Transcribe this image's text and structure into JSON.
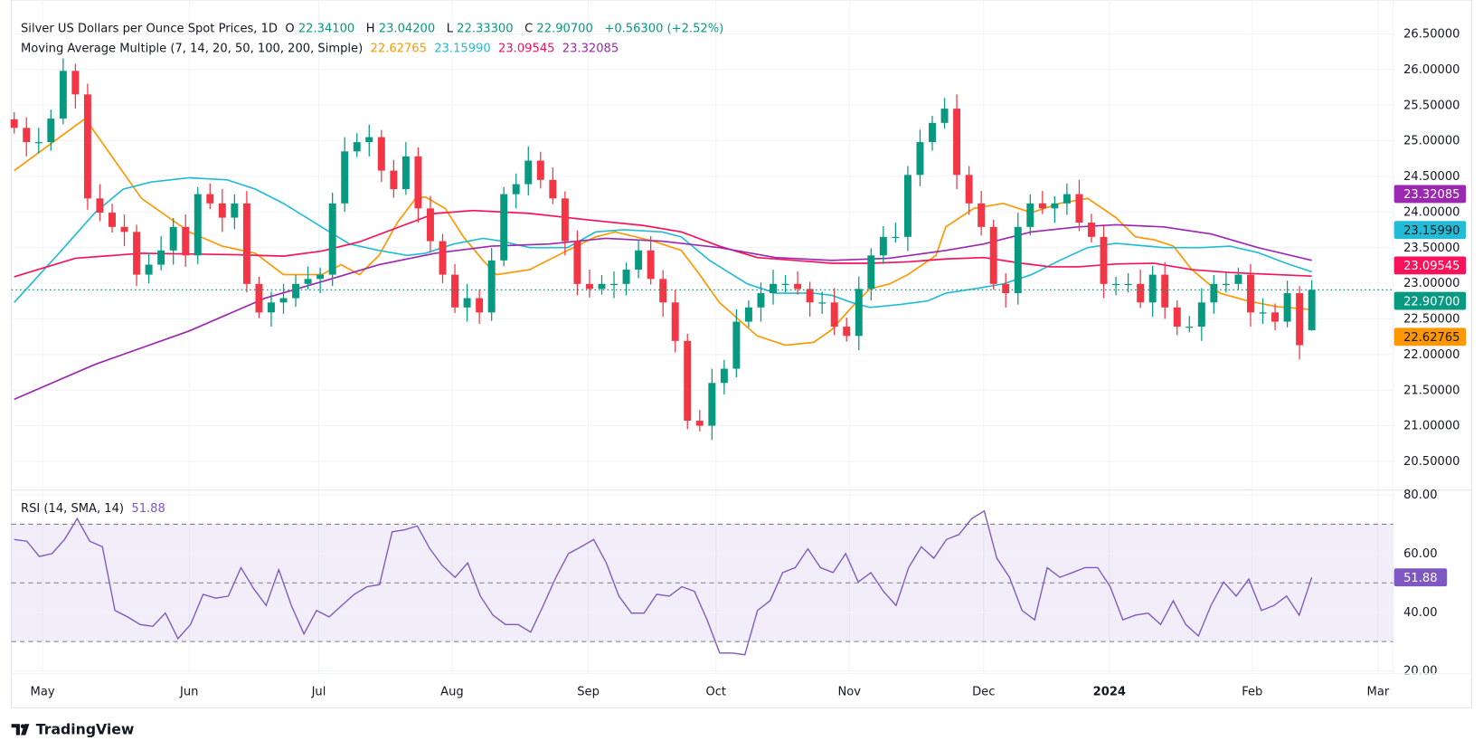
{
  "header": {
    "title": "Silver US Dollars per Ounce Spot Prices, 1D",
    "open_label": "O",
    "open": "22.34100",
    "high_label": "H",
    "high": "23.04200",
    "low_label": "L",
    "low": "22.33300",
    "close_label": "C",
    "close": "22.90700",
    "change": "+0.56300 (+2.52%)"
  },
  "ma_legend": {
    "title": "Moving Average Multiple (7, 14, 20, 50, 100, 200, Simple)",
    "values": [
      "22.62765",
      "23.15990",
      "23.09545",
      "23.32085"
    ]
  },
  "rsi_legend": {
    "title": "RSI (14, SMA, 14)",
    "value": "51.88"
  },
  "branding": {
    "name": "TradingView"
  },
  "colors": {
    "up": "#089981",
    "down": "#F23645",
    "ma20": "#FF9800",
    "ma50": "#22BCD6",
    "ma100": "#F7125A",
    "ma200": "#9C27B0",
    "rsi": "#7E57C2"
  },
  "chart_data": {
    "type": "candlestick",
    "title": "Silver US Dollars per Ounce Spot Prices, 1D",
    "price_axis": {
      "ticks": [
        "26.50000",
        "26.00000",
        "25.50000",
        "25.00000",
        "24.50000",
        "24.00000",
        "23.50000",
        "23.00000",
        "22.50000",
        "22.00000",
        "21.50000",
        "21.00000",
        "20.50000"
      ],
      "ylim": [
        20.3,
        26.7
      ]
    },
    "time_axis": {
      "ticks": [
        "May",
        "Jun",
        "Jul",
        "Aug",
        "Sep",
        "Oct",
        "Nov",
        "Dec",
        "2024",
        "Feb",
        "Mar"
      ]
    },
    "first_open": 25.3,
    "last_candle": {
      "open": 22.341,
      "high": 23.042,
      "low": 22.333,
      "close": 22.907
    },
    "closes": [
      25.18,
      24.98,
      24.98,
      25.31,
      25.98,
      25.65,
      24.19,
      23.99,
      23.79,
      23.72,
      23.12,
      23.26,
      23.46,
      23.79,
      23.39,
      24.25,
      24.12,
      23.92,
      24.12,
      22.99,
      22.59,
      22.73,
      22.79,
      22.99,
      23.06,
      23.12,
      24.12,
      24.85,
      24.98,
      25.05,
      24.58,
      24.32,
      24.78,
      24.05,
      23.59,
      23.12,
      22.66,
      22.79,
      22.59,
      23.32,
      24.25,
      24.39,
      24.72,
      24.45,
      24.19,
      23.59,
      22.99,
      22.92,
      22.99,
      22.99,
      23.19,
      23.46,
      23.06,
      22.73,
      22.19,
      21.07,
      21.0,
      21.6,
      21.8,
      22.46,
      22.66,
      22.86,
      22.99,
      22.99,
      22.92,
      22.73,
      22.73,
      22.39,
      22.26,
      22.92,
      23.39,
      23.65,
      23.65,
      24.52,
      24.98,
      25.25,
      25.45,
      24.52,
      24.12,
      23.79,
      22.99,
      22.86,
      23.79,
      24.12,
      24.05,
      24.12,
      24.25,
      23.85,
      23.65,
      22.99,
      22.99,
      22.99,
      22.73,
      23.12,
      22.66,
      22.39,
      22.39,
      22.73,
      22.99,
      22.99,
      23.12,
      22.59,
      22.59,
      22.46,
      22.86,
      22.13,
      22.907
    ],
    "last_price": {
      "value": "22.90700",
      "price": 22.907
    },
    "moving_averages": [
      {
        "name": "SMA 20",
        "color_key": "ma20",
        "label": "22.62765",
        "price": 22.62765,
        "points": [
          [
            0,
            24.58
          ],
          [
            5.8,
            25.31
          ],
          [
            10.4,
            24.19
          ],
          [
            14.3,
            23.72
          ],
          [
            17,
            23.52
          ],
          [
            19.7,
            23.42
          ],
          [
            22,
            23.12
          ],
          [
            25.1,
            23.12
          ],
          [
            26.7,
            23.26
          ],
          [
            28.2,
            23.12
          ],
          [
            29.8,
            23.39
          ],
          [
            31.3,
            23.85
          ],
          [
            32.8,
            24.19
          ],
          [
            33.6,
            24.21
          ],
          [
            35.2,
            24.05
          ],
          [
            36.7,
            23.65
          ],
          [
            38.3,
            23.32
          ],
          [
            39.4,
            23.12
          ],
          [
            42.1,
            23.19
          ],
          [
            45.2,
            23.46
          ],
          [
            47.5,
            23.65
          ],
          [
            49.1,
            23.72
          ],
          [
            52.2,
            23.59
          ],
          [
            54.5,
            23.46
          ],
          [
            56,
            23.12
          ],
          [
            57.6,
            22.73
          ],
          [
            60.7,
            22.26
          ],
          [
            63,
            22.13
          ],
          [
            65.3,
            22.17
          ],
          [
            66.8,
            22.35
          ],
          [
            68.4,
            22.66
          ],
          [
            69.9,
            22.92
          ],
          [
            71.5,
            22.99
          ],
          [
            73,
            23.12
          ],
          [
            75.3,
            23.39
          ],
          [
            76.1,
            23.79
          ],
          [
            78.4,
            24.05
          ],
          [
            80.8,
            24.12
          ],
          [
            83.1,
            23.99
          ],
          [
            85.4,
            24.12
          ],
          [
            87.7,
            24.19
          ],
          [
            90,
            23.92
          ],
          [
            91.6,
            23.65
          ],
          [
            93.1,
            23.61
          ],
          [
            94.7,
            23.52
          ],
          [
            96.2,
            23.19
          ],
          [
            98.5,
            22.86
          ],
          [
            100.8,
            22.75
          ],
          [
            103.2,
            22.67
          ],
          [
            106,
            22.63
          ]
        ]
      },
      {
        "name": "SMA 50",
        "color_key": "ma50",
        "label": "23.15990",
        "price": 23.1599,
        "points": [
          [
            0,
            22.73
          ],
          [
            3.5,
            23.39
          ],
          [
            6.6,
            23.99
          ],
          [
            8.9,
            24.32
          ],
          [
            11.2,
            24.42
          ],
          [
            14.3,
            24.48
          ],
          [
            17.4,
            24.45
          ],
          [
            19.7,
            24.32
          ],
          [
            22,
            24.12
          ],
          [
            25.1,
            23.79
          ],
          [
            27.4,
            23.55
          ],
          [
            29.8,
            23.46
          ],
          [
            32.1,
            23.39
          ],
          [
            33.6,
            23.42
          ],
          [
            35.9,
            23.55
          ],
          [
            38.3,
            23.63
          ],
          [
            39.8,
            23.59
          ],
          [
            42.1,
            23.5
          ],
          [
            45.2,
            23.5
          ],
          [
            47.5,
            23.72
          ],
          [
            49.8,
            23.75
          ],
          [
            52.9,
            23.72
          ],
          [
            54.5,
            23.65
          ],
          [
            56.8,
            23.32
          ],
          [
            59.9,
            22.99
          ],
          [
            62.2,
            22.86
          ],
          [
            65.3,
            22.86
          ],
          [
            66.8,
            22.83
          ],
          [
            68.4,
            22.73
          ],
          [
            69.9,
            22.66
          ],
          [
            72.3,
            22.7
          ],
          [
            74.6,
            22.75
          ],
          [
            76.1,
            22.86
          ],
          [
            78.4,
            22.92
          ],
          [
            80.8,
            22.99
          ],
          [
            83.1,
            23.12
          ],
          [
            85.4,
            23.32
          ],
          [
            87.7,
            23.5
          ],
          [
            90,
            23.56
          ],
          [
            93.9,
            23.5
          ],
          [
            97,
            23.5
          ],
          [
            99.3,
            23.52
          ],
          [
            101.6,
            23.43
          ],
          [
            103.9,
            23.28
          ],
          [
            106,
            23.16
          ]
        ]
      },
      {
        "name": "SMA 100",
        "color_key": "ma100",
        "label": "23.09545",
        "price": 23.09545,
        "points": [
          [
            0,
            23.09
          ],
          [
            5,
            23.35
          ],
          [
            10.4,
            23.42
          ],
          [
            18.2,
            23.4
          ],
          [
            22,
            23.38
          ],
          [
            25.1,
            23.45
          ],
          [
            28.2,
            23.58
          ],
          [
            31.3,
            23.78
          ],
          [
            34.4,
            23.98
          ],
          [
            37.5,
            24.02
          ],
          [
            42.1,
            23.98
          ],
          [
            46.8,
            23.89
          ],
          [
            51.4,
            23.81
          ],
          [
            54.5,
            23.72
          ],
          [
            57.6,
            23.52
          ],
          [
            60.7,
            23.36
          ],
          [
            63.8,
            23.32
          ],
          [
            66.8,
            23.28
          ],
          [
            69.9,
            23.28
          ],
          [
            73,
            23.3
          ],
          [
            76.1,
            23.34
          ],
          [
            79.2,
            23.36
          ],
          [
            82.3,
            23.28
          ],
          [
            84.6,
            23.23
          ],
          [
            86.9,
            23.23
          ],
          [
            90,
            23.27
          ],
          [
            93.1,
            23.28
          ],
          [
            96.2,
            23.19
          ],
          [
            99.3,
            23.15
          ],
          [
            103.2,
            23.12
          ],
          [
            106,
            23.1
          ]
        ]
      },
      {
        "name": "SMA 200",
        "color_key": "ma200",
        "label": "23.32085",
        "price": 23.32085,
        "points": [
          [
            0,
            21.37
          ],
          [
            6.6,
            21.86
          ],
          [
            14.3,
            22.33
          ],
          [
            20.5,
            22.79
          ],
          [
            25.1,
            23.02
          ],
          [
            29.8,
            23.26
          ],
          [
            34.4,
            23.42
          ],
          [
            39,
            23.52
          ],
          [
            43.7,
            23.55
          ],
          [
            48.3,
            23.63
          ],
          [
            52.9,
            23.59
          ],
          [
            57.6,
            23.5
          ],
          [
            62.2,
            23.36
          ],
          [
            66.8,
            23.32
          ],
          [
            71.5,
            23.35
          ],
          [
            76.1,
            23.46
          ],
          [
            79.2,
            23.55
          ],
          [
            83.1,
            23.72
          ],
          [
            86.9,
            23.79
          ],
          [
            90,
            23.82
          ],
          [
            93.9,
            23.79
          ],
          [
            97.8,
            23.69
          ],
          [
            101.6,
            23.5
          ],
          [
            106,
            23.32
          ]
        ]
      }
    ],
    "rsi": {
      "title": "RSI (14, SMA, 14)",
      "period": 14,
      "ylim": [
        20,
        80
      ],
      "ticks": [
        "80.00",
        "60.00",
        "40.00",
        "20.00"
      ],
      "upper_band": 70,
      "middle_band": 50,
      "lower_band": 30,
      "last": "51.88",
      "values": [
        64.8,
        64.2,
        59.0,
        60.0,
        64.8,
        71.9,
        64.2,
        62.3,
        40.6,
        38.4,
        35.8,
        35.2,
        39.7,
        31.0,
        35.8,
        46.1,
        44.8,
        45.5,
        55.2,
        48.1,
        42.3,
        54.5,
        42.3,
        32.6,
        40.6,
        38.4,
        42.3,
        46.1,
        48.7,
        49.4,
        67.4,
        68.1,
        69.4,
        61.6,
        55.8,
        51.9,
        56.8,
        45.5,
        39.0,
        35.8,
        35.8,
        33.2,
        42.3,
        51.9,
        60.0,
        62.3,
        64.8,
        56.8,
        45.5,
        39.7,
        39.7,
        46.1,
        45.5,
        48.7,
        47.1,
        37.4,
        26.1,
        26.1,
        25.5,
        40.6,
        43.9,
        53.5,
        55.2,
        61.6,
        55.2,
        53.5,
        60.0,
        50.3,
        53.5,
        47.1,
        42.3,
        55.2,
        62.3,
        58.4,
        64.8,
        66.5,
        71.9,
        74.5,
        58.4,
        51.9,
        40.6,
        37.4,
        55.2,
        51.9,
        53.5,
        55.2,
        55.2,
        48.7,
        37.4,
        39.0,
        39.7,
        35.8,
        43.9,
        35.8,
        31.9,
        42.3,
        50.3,
        45.5,
        51.3,
        40.6,
        42.3,
        45.5,
        39.0,
        51.88
      ]
    }
  }
}
